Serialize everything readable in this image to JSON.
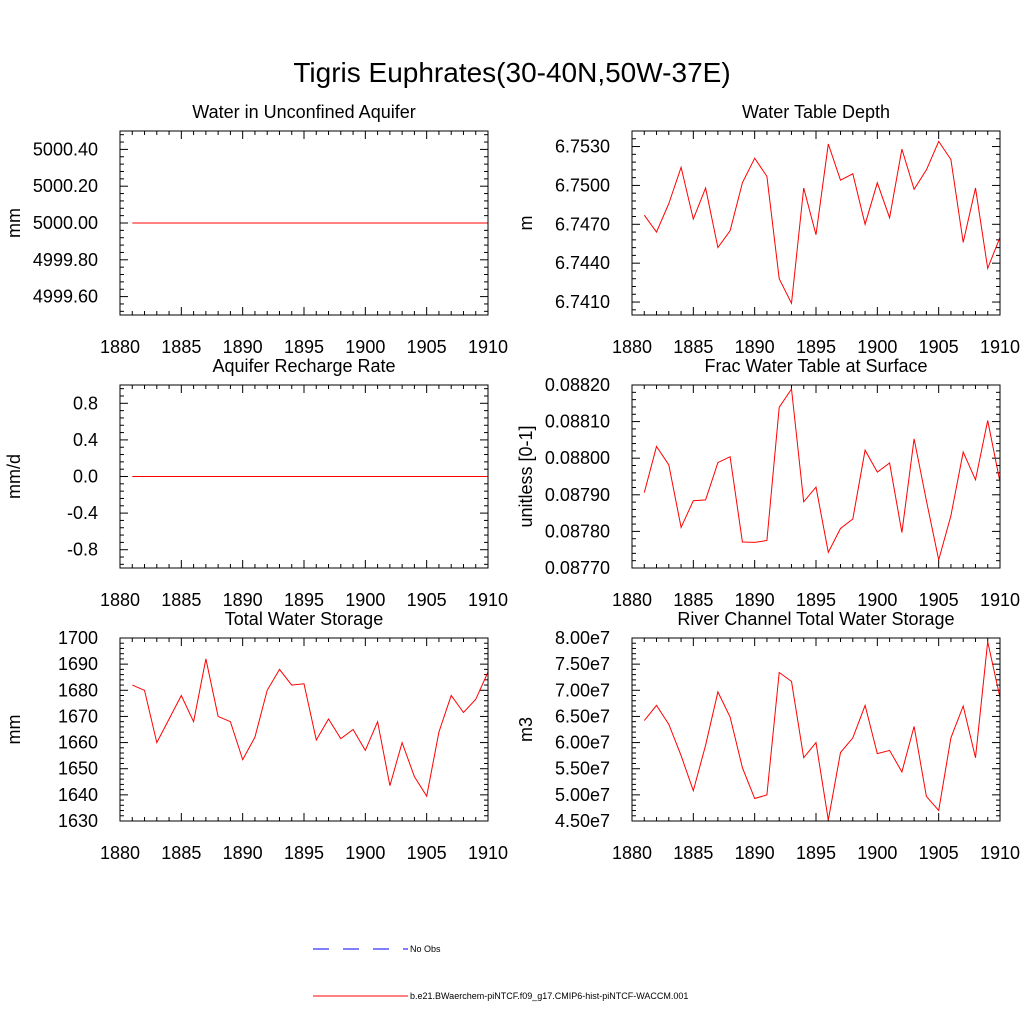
{
  "figure": {
    "title": "Tigris Euphrates(30-40N,50W-37E)",
    "series_color": "#ff0000",
    "obs_color": "#0000ff",
    "legend": [
      {
        "label": "No Obs",
        "style": "dashed",
        "color": "#0000ff"
      },
      {
        "label": "b.e21.BWaerchem-piNTCF.f09_g17.CMIP6-hist-piNTCF-WACCM.001",
        "style": "solid",
        "color": "#ff0000"
      }
    ]
  },
  "chart_data": [
    {
      "type": "line",
      "title": "Water in Unconfined Aquifer",
      "ylabel": "mm",
      "xlim": [
        1880,
        1910
      ],
      "ylim": [
        4999.5,
        5000.5
      ],
      "xticks": [
        "1880",
        "1885",
        "1890",
        "1895",
        "1900",
        "1905",
        "1910"
      ],
      "yticks": [
        "4999.60",
        "4999.80",
        "5000.00",
        "5000.20",
        "5000.40"
      ],
      "x": [
        1881,
        1882,
        1883,
        1884,
        1885,
        1886,
        1887,
        1888,
        1889,
        1890,
        1891,
        1892,
        1893,
        1894,
        1895,
        1896,
        1897,
        1898,
        1899,
        1900,
        1901,
        1902,
        1903,
        1904,
        1905,
        1906,
        1907,
        1908,
        1909,
        1910
      ],
      "series": [
        {
          "values": [
            5000,
            5000,
            5000,
            5000,
            5000,
            5000,
            5000,
            5000,
            5000,
            5000,
            5000,
            5000,
            5000,
            5000,
            5000,
            5000,
            5000,
            5000,
            5000,
            5000,
            5000,
            5000,
            5000,
            5000,
            5000,
            5000,
            5000,
            5000,
            5000,
            5000
          ]
        }
      ]
    },
    {
      "type": "line",
      "title": "Water Table Depth",
      "ylabel": "m",
      "xlim": [
        1880,
        1910
      ],
      "ylim": [
        6.74,
        6.7542
      ],
      "xticks": [
        "1880",
        "1885",
        "1890",
        "1895",
        "1900",
        "1905",
        "1910"
      ],
      "yticks": [
        "6.7410",
        "6.7440",
        "6.7470",
        "6.7500",
        "6.7530"
      ],
      "x": [
        1881,
        1882,
        1883,
        1884,
        1885,
        1886,
        1887,
        1888,
        1889,
        1890,
        1891,
        1892,
        1893,
        1894,
        1895,
        1896,
        1897,
        1898,
        1899,
        1900,
        1901,
        1902,
        1903,
        1904,
        1905,
        1906,
        1907,
        1908,
        1909,
        1910
      ],
      "series": [
        {
          "values": [
            6.7477,
            6.7464,
            6.7486,
            6.7514,
            6.7474,
            6.7498,
            6.7452,
            6.7465,
            6.7502,
            6.7521,
            6.7507,
            6.7428,
            6.7409,
            6.7498,
            6.7462,
            6.7532,
            6.7504,
            6.7509,
            6.747,
            6.7502,
            6.7475,
            6.7528,
            6.7497,
            6.7512,
            6.7534,
            6.752,
            6.7456,
            6.7498,
            6.7436,
            6.746
          ]
        }
      ]
    },
    {
      "type": "line",
      "title": "Aquifer Recharge Rate",
      "ylabel": "mm/d",
      "xlim": [
        1880,
        1910
      ],
      "ylim": [
        -1.0,
        1.0
      ],
      "xticks": [
        "1880",
        "1885",
        "1890",
        "1895",
        "1900",
        "1905",
        "1910"
      ],
      "yticks": [
        "-0.8",
        "-0.4",
        "0.0",
        "0.4",
        "0.8"
      ],
      "x": [
        1881,
        1882,
        1883,
        1884,
        1885,
        1886,
        1887,
        1888,
        1889,
        1890,
        1891,
        1892,
        1893,
        1894,
        1895,
        1896,
        1897,
        1898,
        1899,
        1900,
        1901,
        1902,
        1903,
        1904,
        1905,
        1906,
        1907,
        1908,
        1909,
        1910
      ],
      "series": [
        {
          "values": [
            0,
            0,
            0,
            0,
            0,
            0,
            0,
            0,
            0,
            0,
            0,
            0,
            0,
            0,
            0,
            0,
            0,
            0,
            0,
            0,
            0,
            0,
            0,
            0,
            0,
            0,
            0,
            0,
            0,
            0
          ]
        }
      ]
    },
    {
      "type": "line",
      "title": "Frac Water Table at Surface",
      "ylabel": "unitless [0-1]",
      "xlim": [
        1880,
        1910
      ],
      "ylim": [
        0.0877,
        0.0882
      ],
      "xticks": [
        "1880",
        "1885",
        "1890",
        "1895",
        "1900",
        "1905",
        "1910"
      ],
      "yticks": [
        "0.08770",
        "0.08780",
        "0.08790",
        "0.08800",
        "0.08810",
        "0.08820"
      ],
      "x": [
        1881,
        1882,
        1883,
        1884,
        1885,
        1886,
        1887,
        1888,
        1889,
        1890,
        1891,
        1892,
        1893,
        1894,
        1895,
        1896,
        1897,
        1898,
        1899,
        1900,
        1901,
        1902,
        1903,
        1904,
        1905,
        1906,
        1907,
        1908,
        1909,
        1910
      ],
      "series": [
        {
          "values": [
            0.087906,
            0.088032,
            0.087982,
            0.087811,
            0.087884,
            0.087886,
            0.087988,
            0.088004,
            0.087771,
            0.08777,
            0.087775,
            0.088139,
            0.088189,
            0.087881,
            0.087921,
            0.087743,
            0.087808,
            0.087834,
            0.088022,
            0.087962,
            0.087987,
            0.087797,
            0.088053,
            0.087884,
            0.087722,
            0.087843,
            0.088017,
            0.087941,
            0.088103,
            0.087935
          ]
        }
      ]
    },
    {
      "type": "line",
      "title": "Total Water Storage",
      "ylabel": "mm",
      "xlim": [
        1880,
        1910
      ],
      "ylim": [
        1630,
        1700
      ],
      "xticks": [
        "1880",
        "1885",
        "1890",
        "1895",
        "1900",
        "1905",
        "1910"
      ],
      "yticks": [
        "1630",
        "1640",
        "1650",
        "1660",
        "1670",
        "1680",
        "1690",
        "1700"
      ],
      "x": [
        1881,
        1882,
        1883,
        1884,
        1885,
        1886,
        1887,
        1888,
        1889,
        1890,
        1891,
        1892,
        1893,
        1894,
        1895,
        1896,
        1897,
        1898,
        1899,
        1900,
        1901,
        1902,
        1903,
        1904,
        1905,
        1906,
        1907,
        1908,
        1909,
        1910
      ],
      "series": [
        {
          "values": [
            1682,
            1680,
            1660,
            1669,
            1678,
            1668,
            1692,
            1670,
            1668,
            1653.5,
            1662,
            1680,
            1688,
            1682,
            1682.5,
            1661,
            1669,
            1661.5,
            1665,
            1657,
            1668,
            1643.5,
            1660,
            1647,
            1639.5,
            1664,
            1678,
            1671.5,
            1676.5,
            1687
          ]
        }
      ]
    },
    {
      "type": "line",
      "title": "River Channel Total Water Storage",
      "ylabel": "m3",
      "xlim": [
        1880,
        1910
      ],
      "ylim": [
        45000000,
        80000000
      ],
      "xticks": [
        "1880",
        "1885",
        "1890",
        "1895",
        "1900",
        "1905",
        "1910"
      ],
      "yticks": [
        "4.50e7",
        "5.00e7",
        "5.50e7",
        "6.00e7",
        "6.50e7",
        "7.00e7",
        "7.50e7",
        "8.00e7"
      ],
      "x": [
        1881,
        1882,
        1883,
        1884,
        1885,
        1886,
        1887,
        1888,
        1889,
        1890,
        1891,
        1892,
        1893,
        1894,
        1895,
        1896,
        1897,
        1898,
        1899,
        1900,
        1901,
        1902,
        1903,
        1904,
        1905,
        1906,
        1907,
        1908,
        1909,
        1910
      ],
      "series": [
        {
          "values": [
            64200000,
            67100000,
            63500000,
            57500000,
            50800000,
            59500000,
            69700000,
            64900000,
            55200000,
            49300000,
            50000000,
            73400000,
            71700000,
            57100000,
            60000000,
            45200000,
            58100000,
            60900000,
            67100000,
            57900000,
            58500000,
            54400000,
            63100000,
            49700000,
            47000000,
            60900000,
            67000000,
            57100000,
            79300000,
            68600000
          ]
        }
      ]
    }
  ]
}
